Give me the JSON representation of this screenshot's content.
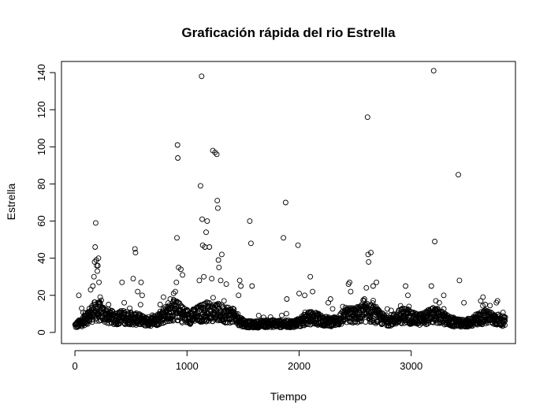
{
  "chart_data": {
    "type": "scatter",
    "title": "Graficación rápida del rio Estrella",
    "xlabel": "Tiempo",
    "ylabel": "Estrella",
    "xlim": [
      -120,
      3930
    ],
    "ylim": [
      -6,
      146
    ],
    "xticks": [
      0,
      1000,
      2000,
      3000
    ],
    "yticks": [
      0,
      20,
      40,
      60,
      80,
      100,
      120,
      140
    ],
    "n_points": 3840,
    "grid": false,
    "legend": "none",
    "marker": "open-circle",
    "marker_color": "#000000",
    "background": "#ffffff",
    "outliers": [
      {
        "x": 35,
        "y": 20
      },
      {
        "x": 60,
        "y": 13
      },
      {
        "x": 90,
        "y": 9
      },
      {
        "x": 120,
        "y": 11
      },
      {
        "x": 140,
        "y": 23
      },
      {
        "x": 160,
        "y": 25
      },
      {
        "x": 170,
        "y": 30
      },
      {
        "x": 175,
        "y": 38
      },
      {
        "x": 180,
        "y": 46
      },
      {
        "x": 185,
        "y": 59
      },
      {
        "x": 190,
        "y": 39
      },
      {
        "x": 195,
        "y": 36
      },
      {
        "x": 200,
        "y": 33
      },
      {
        "x": 205,
        "y": 36
      },
      {
        "x": 210,
        "y": 40
      },
      {
        "x": 215,
        "y": 27
      },
      {
        "x": 225,
        "y": 19
      },
      {
        "x": 300,
        "y": 15
      },
      {
        "x": 420,
        "y": 27
      },
      {
        "x": 440,
        "y": 16
      },
      {
        "x": 520,
        "y": 29
      },
      {
        "x": 535,
        "y": 45
      },
      {
        "x": 540,
        "y": 43
      },
      {
        "x": 560,
        "y": 22
      },
      {
        "x": 590,
        "y": 27
      },
      {
        "x": 600,
        "y": 20
      },
      {
        "x": 760,
        "y": 15
      },
      {
        "x": 790,
        "y": 19
      },
      {
        "x": 850,
        "y": 18
      },
      {
        "x": 880,
        "y": 21
      },
      {
        "x": 895,
        "y": 22
      },
      {
        "x": 905,
        "y": 27
      },
      {
        "x": 910,
        "y": 51
      },
      {
        "x": 915,
        "y": 101
      },
      {
        "x": 918,
        "y": 94
      },
      {
        "x": 925,
        "y": 35
      },
      {
        "x": 945,
        "y": 34
      },
      {
        "x": 960,
        "y": 31
      },
      {
        "x": 1110,
        "y": 28
      },
      {
        "x": 1120,
        "y": 79
      },
      {
        "x": 1130,
        "y": 138
      },
      {
        "x": 1135,
        "y": 61
      },
      {
        "x": 1140,
        "y": 47
      },
      {
        "x": 1150,
        "y": 30
      },
      {
        "x": 1160,
        "y": 46
      },
      {
        "x": 1170,
        "y": 54
      },
      {
        "x": 1180,
        "y": 60
      },
      {
        "x": 1200,
        "y": 46
      },
      {
        "x": 1220,
        "y": 29
      },
      {
        "x": 1230,
        "y": 98
      },
      {
        "x": 1250,
        "y": 97
      },
      {
        "x": 1265,
        "y": 96
      },
      {
        "x": 1270,
        "y": 71
      },
      {
        "x": 1275,
        "y": 67
      },
      {
        "x": 1280,
        "y": 39
      },
      {
        "x": 1285,
        "y": 35
      },
      {
        "x": 1300,
        "y": 28
      },
      {
        "x": 1310,
        "y": 42
      },
      {
        "x": 1330,
        "y": 17
      },
      {
        "x": 1350,
        "y": 26
      },
      {
        "x": 1460,
        "y": 20
      },
      {
        "x": 1470,
        "y": 28
      },
      {
        "x": 1480,
        "y": 25
      },
      {
        "x": 1560,
        "y": 60
      },
      {
        "x": 1570,
        "y": 48
      },
      {
        "x": 1580,
        "y": 25
      },
      {
        "x": 1860,
        "y": 51
      },
      {
        "x": 1880,
        "y": 70
      },
      {
        "x": 1890,
        "y": 18
      },
      {
        "x": 1990,
        "y": 47
      },
      {
        "x": 2000,
        "y": 21
      },
      {
        "x": 2050,
        "y": 20
      },
      {
        "x": 2100,
        "y": 30
      },
      {
        "x": 2120,
        "y": 22
      },
      {
        "x": 2260,
        "y": 16
      },
      {
        "x": 2280,
        "y": 18
      },
      {
        "x": 2440,
        "y": 26
      },
      {
        "x": 2450,
        "y": 27
      },
      {
        "x": 2460,
        "y": 22
      },
      {
        "x": 2560,
        "y": 15
      },
      {
        "x": 2580,
        "y": 17
      },
      {
        "x": 2600,
        "y": 24
      },
      {
        "x": 2610,
        "y": 116
      },
      {
        "x": 2615,
        "y": 42
      },
      {
        "x": 2620,
        "y": 38
      },
      {
        "x": 2640,
        "y": 43
      },
      {
        "x": 2660,
        "y": 25
      },
      {
        "x": 2690,
        "y": 27
      },
      {
        "x": 2950,
        "y": 25
      },
      {
        "x": 2970,
        "y": 20
      },
      {
        "x": 2980,
        "y": 14
      },
      {
        "x": 3180,
        "y": 25
      },
      {
        "x": 3200,
        "y": 141
      },
      {
        "x": 3210,
        "y": 49
      },
      {
        "x": 3220,
        "y": 17
      },
      {
        "x": 3250,
        "y": 16
      },
      {
        "x": 3290,
        "y": 20
      },
      {
        "x": 3420,
        "y": 85
      },
      {
        "x": 3430,
        "y": 28
      },
      {
        "x": 3470,
        "y": 16
      },
      {
        "x": 3620,
        "y": 17
      },
      {
        "x": 3640,
        "y": 19
      },
      {
        "x": 3660,
        "y": 15
      },
      {
        "x": 3760,
        "y": 16
      },
      {
        "x": 3770,
        "y": 17
      }
    ]
  }
}
